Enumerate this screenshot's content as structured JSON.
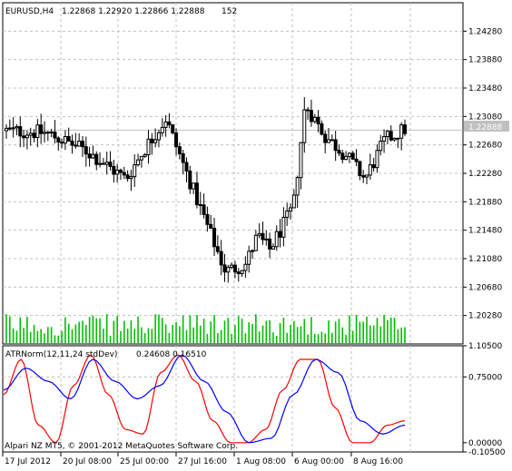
{
  "chart_header": {
    "symbol_timeframe": "EURUSD,H4",
    "ohlc": "1.22868 1.22920 1.22866 1.22888",
    "count": "152"
  },
  "indicator_header": {
    "name": "ATRNorm(12,11,24 stdDev)",
    "values": "0.24608 0.16510"
  },
  "copyright": "Alpari NZ MT5, © 2001-2012 MetaQuotes Software Corp.",
  "price_panel": {
    "tick_labels": [
      "1.24280",
      "1.23880",
      "1.23480",
      "1.23080",
      "1.22680",
      "1.22280",
      "1.21880",
      "1.21480",
      "1.21080",
      "1.20680",
      "1.20280"
    ],
    "current_price_label": "1.22888",
    "current_price": 1.22888
  },
  "indicator_panel": {
    "tick_labels": [
      "1.10500",
      "0.75000",
      "0.00000",
      "-0.10500"
    ]
  },
  "x_axis": {
    "tick_labels": [
      "17 Jul 2012",
      "20 Jul 08:00",
      "25 Jul 00:00",
      "27 Jul 16:00",
      "1 Aug 08:00",
      "6 Aug 00:00",
      "8 Aug 16:00"
    ]
  },
  "colors": {
    "background": "#ffffff",
    "candle": "#000000",
    "volume": "#00c000",
    "indicator_red": "#ff0000",
    "indicator_blue": "#0000ff",
    "current_price_line": "#c0c0c0",
    "level_line": "#c0c0c0"
  },
  "chart_data": [
    {
      "type": "candlestick",
      "title": "EURUSD,H4",
      "ylim": [
        1.1988,
        1.2468
      ],
      "key_points": {
        "x_index": [
          0,
          10,
          20,
          30,
          35,
          40,
          42,
          50,
          55,
          60,
          63,
          66,
          72,
          75,
          80,
          85,
          90,
          95,
          100
        ],
        "close": [
          1.2288,
          1.2285,
          1.226,
          1.222,
          1.2265,
          1.2305,
          1.2275,
          1.216,
          1.209,
          1.21,
          1.214,
          1.212,
          1.218,
          1.2325,
          1.228,
          1.2255,
          1.222,
          1.2275,
          1.229
        ]
      }
    },
    {
      "type": "bar",
      "title": "Tick volume",
      "values": "one green bar per candle (relative heights)"
    },
    {
      "type": "line",
      "title": "ATRNorm(12,11,24 stdDev)",
      "ylim": [
        -0.105,
        1.105
      ],
      "levels": [
        0.75
      ],
      "series": [
        {
          "name": "ATRNorm red",
          "color": "#ff0000",
          "values": [
            0.55,
            0.95,
            0.2,
            0.0,
            0.65,
            1.0,
            0.55,
            0.15,
            0.1,
            0.8,
            1.0,
            0.7,
            0.25,
            0.0,
            0.0,
            0.15,
            0.6,
            0.95,
            0.95,
            0.4,
            0.0,
            0.0,
            0.2,
            0.25
          ]
        },
        {
          "name": "ATRNorm blue",
          "color": "#0000ff",
          "values": [
            0.6,
            0.85,
            0.7,
            0.5,
            0.95,
            0.7,
            0.5,
            0.65,
            1.0,
            0.7,
            0.35,
            0.0,
            0.05,
            0.55,
            0.95,
            0.8,
            0.25,
            0.1,
            0.2
          ]
        }
      ]
    }
  ]
}
